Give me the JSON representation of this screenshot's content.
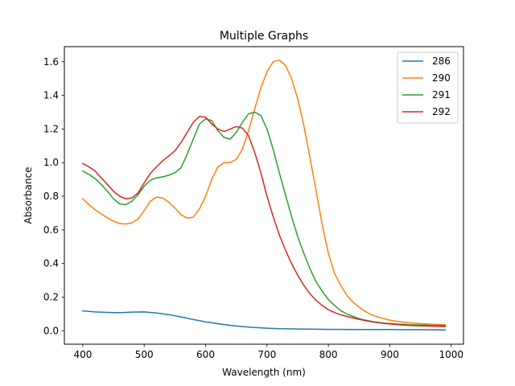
{
  "chart_data": {
    "type": "line",
    "title": "Multiple Graphs",
    "xlabel": "Wavelength (nm)",
    "ylabel": "Absorbance",
    "xlim": [
      370,
      1020
    ],
    "ylim": [
      -0.08,
      1.69
    ],
    "xticks": [
      400,
      500,
      600,
      700,
      800,
      900,
      1000
    ],
    "xtick_labels": [
      "400",
      "500",
      "600",
      "700",
      "800",
      "900",
      "1000"
    ],
    "yticks": [
      0.0,
      0.2,
      0.4,
      0.6,
      0.8,
      1.0,
      1.2,
      1.4,
      1.6
    ],
    "ytick_labels": [
      "0.0",
      "0.2",
      "0.4",
      "0.6",
      "0.8",
      "1.0",
      "1.2",
      "1.4",
      "1.6"
    ],
    "grid": false,
    "legend_position": "top-right",
    "series": [
      {
        "name": "286",
        "color": "#1f77b4",
        "x": [
          400,
          420,
          440,
          460,
          480,
          500,
          520,
          540,
          560,
          580,
          600,
          620,
          640,
          660,
          680,
          700,
          720,
          740,
          760,
          780,
          800,
          820,
          840,
          860,
          880,
          900,
          920,
          940,
          960,
          980,
          990
        ],
        "y": [
          0.118,
          0.112,
          0.109,
          0.107,
          0.111,
          0.112,
          0.105,
          0.096,
          0.082,
          0.067,
          0.053,
          0.042,
          0.032,
          0.025,
          0.019,
          0.015,
          0.012,
          0.011,
          0.01,
          0.009,
          0.008,
          0.008,
          0.007,
          0.007,
          0.007,
          0.007,
          0.006,
          0.006,
          0.006,
          0.005,
          0.005
        ]
      },
      {
        "name": "290",
        "color": "#ff7f0e",
        "x": [
          400,
          410,
          420,
          430,
          440,
          450,
          460,
          470,
          480,
          490,
          500,
          510,
          520,
          530,
          540,
          550,
          560,
          570,
          580,
          590,
          600,
          610,
          620,
          630,
          640,
          650,
          660,
          670,
          680,
          690,
          700,
          710,
          720,
          730,
          740,
          750,
          760,
          770,
          780,
          790,
          800,
          810,
          820,
          830,
          840,
          850,
          860,
          870,
          880,
          890,
          900,
          910,
          920,
          930,
          940,
          950,
          960,
          970,
          980,
          990
        ],
        "y": [
          0.785,
          0.75,
          0.72,
          0.695,
          0.672,
          0.652,
          0.638,
          0.635,
          0.642,
          0.665,
          0.715,
          0.77,
          0.795,
          0.79,
          0.765,
          0.73,
          0.69,
          0.67,
          0.675,
          0.725,
          0.8,
          0.9,
          0.975,
          1.0,
          1.0,
          1.02,
          1.08,
          1.19,
          1.32,
          1.445,
          1.54,
          1.6,
          1.61,
          1.58,
          1.5,
          1.38,
          1.22,
          1.03,
          0.83,
          0.63,
          0.46,
          0.34,
          0.27,
          0.21,
          0.17,
          0.14,
          0.115,
          0.095,
          0.082,
          0.072,
          0.063,
          0.057,
          0.052,
          0.048,
          0.045,
          0.042,
          0.04,
          0.038,
          0.037,
          0.036
        ]
      },
      {
        "name": "291",
        "color": "#2ca02c",
        "x": [
          400,
          410,
          420,
          430,
          440,
          450,
          460,
          470,
          480,
          490,
          500,
          510,
          520,
          530,
          540,
          550,
          560,
          570,
          580,
          590,
          600,
          610,
          620,
          630,
          640,
          650,
          660,
          670,
          680,
          690,
          700,
          710,
          720,
          730,
          740,
          750,
          760,
          770,
          780,
          790,
          800,
          810,
          820,
          830,
          840,
          850,
          860,
          870,
          880,
          890,
          900,
          910,
          920,
          930,
          940,
          950,
          960,
          970,
          980,
          990
        ],
        "y": [
          0.95,
          0.93,
          0.905,
          0.87,
          0.83,
          0.785,
          0.755,
          0.75,
          0.77,
          0.81,
          0.86,
          0.895,
          0.91,
          0.915,
          0.925,
          0.94,
          0.97,
          1.05,
          1.14,
          1.23,
          1.26,
          1.25,
          1.19,
          1.15,
          1.14,
          1.18,
          1.24,
          1.29,
          1.3,
          1.28,
          1.2,
          1.08,
          0.94,
          0.81,
          0.68,
          0.56,
          0.46,
          0.37,
          0.29,
          0.235,
          0.185,
          0.15,
          0.12,
          0.1,
          0.085,
          0.072,
          0.063,
          0.056,
          0.05,
          0.046,
          0.043,
          0.04,
          0.038,
          0.036,
          0.035,
          0.034,
          0.033,
          0.032,
          0.031,
          0.03
        ]
      },
      {
        "name": "292",
        "color": "#d62728",
        "x": [
          400,
          410,
          420,
          430,
          440,
          450,
          460,
          470,
          480,
          490,
          500,
          510,
          520,
          530,
          540,
          550,
          560,
          570,
          580,
          590,
          600,
          610,
          620,
          630,
          640,
          650,
          660,
          670,
          680,
          690,
          700,
          710,
          720,
          730,
          740,
          750,
          760,
          770,
          780,
          790,
          800,
          810,
          820,
          830,
          840,
          850,
          860,
          870,
          880,
          890,
          900,
          910,
          920,
          930,
          940,
          950,
          960,
          970,
          980,
          990
        ],
        "y": [
          0.995,
          0.975,
          0.95,
          0.91,
          0.87,
          0.83,
          0.8,
          0.785,
          0.79,
          0.82,
          0.88,
          0.935,
          0.975,
          1.01,
          1.04,
          1.07,
          1.12,
          1.18,
          1.24,
          1.275,
          1.27,
          1.23,
          1.2,
          1.185,
          1.2,
          1.215,
          1.205,
          1.16,
          1.06,
          0.94,
          0.8,
          0.68,
          0.57,
          0.48,
          0.4,
          0.33,
          0.27,
          0.22,
          0.18,
          0.15,
          0.125,
          0.108,
          0.095,
          0.085,
          0.076,
          0.068,
          0.06,
          0.054,
          0.048,
          0.044,
          0.04,
          0.037,
          0.034,
          0.032,
          0.03,
          0.029,
          0.028,
          0.027,
          0.026,
          0.025
        ]
      }
    ]
  }
}
